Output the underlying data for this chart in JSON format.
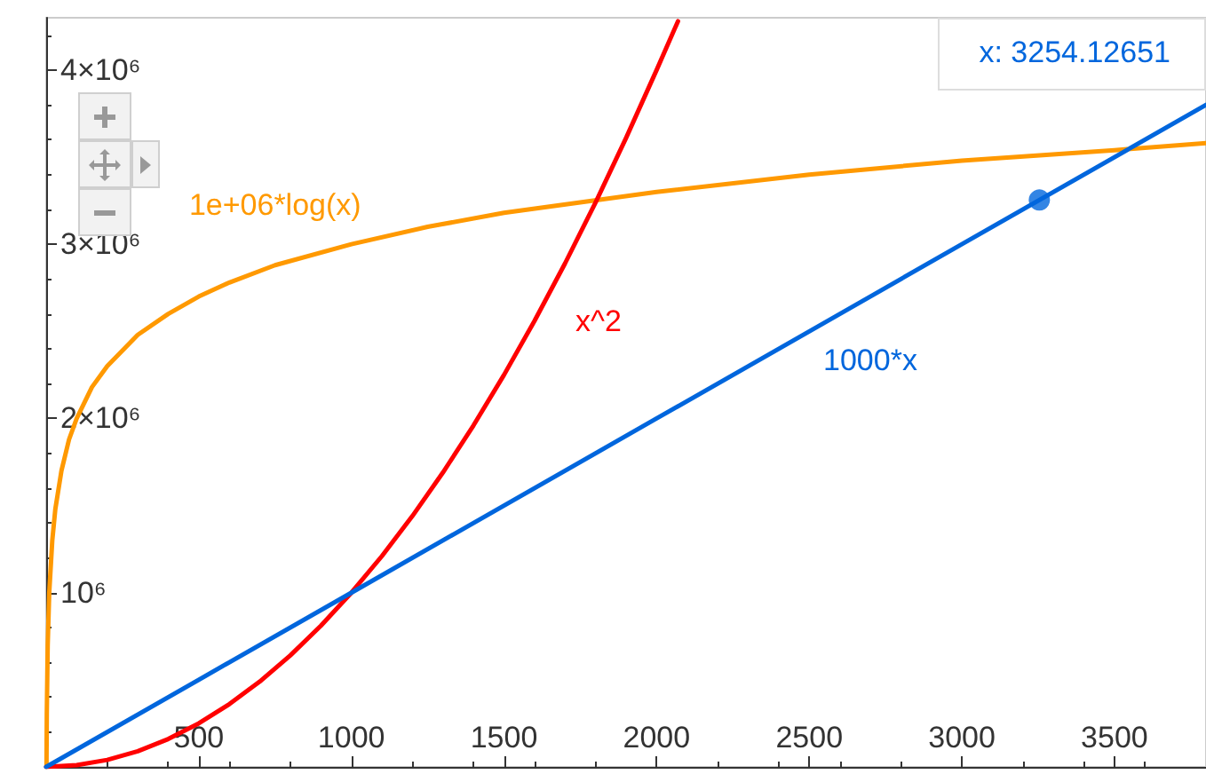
{
  "chart_data": {
    "type": "line",
    "xlim": [
      0,
      3800
    ],
    "ylim": [
      0,
      4300000
    ],
    "xticks": [
      500,
      1000,
      1500,
      2000,
      2500,
      3000,
      3500
    ],
    "yticks": [
      {
        "value": 1000000,
        "label": "10⁶"
      },
      {
        "value": 2000000,
        "label": "2×10⁶"
      },
      {
        "value": 3000000,
        "label": "3×10⁶"
      },
      {
        "value": 4000000,
        "label": "4×10⁶"
      }
    ],
    "grid": false,
    "legend": false,
    "marker": "none",
    "line_style": "solid",
    "series": [
      {
        "name": "1e+06*log(x)",
        "color": "#ff9900",
        "x": [
          1,
          2,
          5,
          10,
          20,
          30,
          50,
          75,
          100,
          150,
          200,
          300,
          400,
          500,
          600,
          750,
          1000,
          1250,
          1500,
          1750,
          2000,
          2500,
          3000,
          3500,
          3800
        ],
        "values": [
          0,
          300000,
          700000,
          1000000,
          1300000,
          1480000,
          1700000,
          1880000,
          2000000,
          2180000,
          2300000,
          2480000,
          2600000,
          2700000,
          2780000,
          2880000,
          3000000,
          3100000,
          3180000,
          3240000,
          3300000,
          3400000,
          3480000,
          3540000,
          3580000
        ]
      },
      {
        "name": "x^2",
        "color": "#ff0000",
        "x": [
          0,
          100,
          200,
          300,
          400,
          500,
          600,
          700,
          800,
          900,
          1000,
          1100,
          1200,
          1300,
          1400,
          1500,
          1600,
          1700,
          1800,
          1900,
          2000,
          2070
        ],
        "values": [
          0,
          10000,
          40000,
          90000,
          160000,
          250000,
          360000,
          490000,
          640000,
          810000,
          1000000,
          1210000,
          1440000,
          1690000,
          1960000,
          2250000,
          2560000,
          2890000,
          3240000,
          3610000,
          4000000,
          4280000
        ]
      },
      {
        "name": "1000*x",
        "color": "#0066dd",
        "x": [
          0,
          1000,
          2000,
          2700,
          3000,
          3800
        ],
        "values": [
          0,
          1000000,
          2000000,
          2700000,
          3000000,
          3800000
        ]
      },
      {
        "type": "scatter",
        "marker": "circle",
        "color": "#0066dd",
        "x": [
          3254
        ],
        "values": [
          3254000
        ]
      }
    ],
    "annotations": [
      "x: 3254.12651"
    ]
  }
}
